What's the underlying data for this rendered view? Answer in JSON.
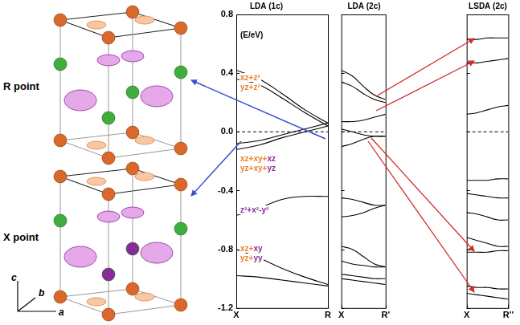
{
  "structure": {
    "labels": [
      "R point",
      "X point"
    ],
    "axes": [
      "c",
      "b",
      "a"
    ]
  },
  "chart_data": [
    {
      "type": "line",
      "title": "LDA (1c)",
      "y_label": "(E/eV)",
      "x": [
        0,
        0.25,
        0.5,
        0.75,
        1
      ],
      "xlim": [
        0,
        1
      ],
      "xticks": [
        {
          "value": 0,
          "label": "X"
        },
        {
          "value": 1,
          "label": "R"
        }
      ],
      "ylim": [
        -1.2,
        0.8
      ],
      "yticks": [
        0.8,
        0.4,
        {
          "value": 0,
          "label": "0.0"
        },
        -0.4,
        -0.8,
        -1.2
      ],
      "grid": false,
      "annotations": [
        [
          {
            "text": "xz+z²",
            "color": "#e8822a"
          }
        ],
        [
          {
            "text": "yz+z²",
            "color": "#e8822a"
          }
        ],
        [
          {
            "text": "xz+xy+",
            "color": "#e8822a"
          },
          {
            "text": "xz",
            "color": "#8a2a9a"
          }
        ],
        [
          {
            "text": "yz+xy+",
            "color": "#e8822a"
          },
          {
            "text": "yz",
            "color": "#8a2a9a"
          }
        ],
        [
          {
            "text": "z²+x²-y²",
            "color": "#8a2a9a"
          }
        ],
        [
          {
            "text": "xz+",
            "color": "#e8822a"
          },
          {
            "text": "xy",
            "color": "#8a2a9a"
          }
        ],
        [
          {
            "text": "yz+",
            "color": "#e8822a"
          },
          {
            "text": "yy",
            "color": "#8a2a9a"
          }
        ]
      ],
      "series": [
        {
          "color": "#000000",
          "values": [
            0.42,
            0.36,
            0.26,
            0.15,
            0.06
          ]
        },
        {
          "color": "#000000",
          "values": [
            0.36,
            0.32,
            0.23,
            0.13,
            0.04
          ]
        },
        {
          "color": "#000000",
          "values": [
            -0.08,
            -0.06,
            -0.02,
            0.02,
            0.06
          ]
        },
        {
          "color": "#000000",
          "values": [
            -0.12,
            -0.09,
            -0.04,
            0.0,
            0.04
          ]
        },
        {
          "color": "#000000",
          "values": [
            -0.57,
            -0.52,
            -0.46,
            -0.44,
            -0.44
          ]
        },
        {
          "color": "#000000",
          "values": [
            -0.8,
            -0.86,
            -0.93,
            -0.99,
            -1.04
          ]
        },
        {
          "color": "#000000",
          "values": [
            -0.98,
            -0.99,
            -1.01,
            -1.03,
            -1.05
          ]
        },
        {
          "color": "#000000",
          "line_style": "dashed",
          "values": [
            0,
            0,
            0,
            0,
            0
          ]
        }
      ]
    },
    {
      "type": "line",
      "title": "LDA (2c)",
      "x": [
        0,
        0.25,
        0.5,
        0.75,
        1
      ],
      "xlim": [
        0,
        1
      ],
      "xticks": [
        {
          "value": 0,
          "label": "X"
        },
        {
          "value": 1,
          "label": "R'"
        }
      ],
      "ylim": [
        -1.2,
        0.8
      ],
      "yticks": [
        0.8,
        0.4,
        0,
        -0.4,
        -0.8,
        -1.2
      ],
      "grid": false,
      "tick_labels": "x",
      "series": [
        {
          "color": "#000000",
          "values": [
            0.42,
            0.38,
            0.31,
            0.25,
            0.22
          ]
        },
        {
          "color": "#000000",
          "values": [
            0.34,
            0.31,
            0.26,
            0.22,
            0.2
          ]
        },
        {
          "color": "#000000",
          "values": [
            0.07,
            0.07,
            0.08,
            0.1,
            0.12
          ]
        },
        {
          "color": "#000000",
          "values": [
            0.02,
            0.0,
            -0.02,
            -0.03,
            -0.03
          ]
        },
        {
          "color": "#000000",
          "values": [
            -0.1,
            -0.08,
            -0.05,
            -0.03,
            -0.03
          ]
        },
        {
          "color": "#000000",
          "values": [
            -0.45,
            -0.46,
            -0.48,
            -0.5,
            -0.5
          ]
        },
        {
          "color": "#000000",
          "values": [
            -0.58,
            -0.57,
            -0.55,
            -0.52,
            -0.5
          ]
        },
        {
          "color": "#000000",
          "values": [
            -0.78,
            -0.8,
            -0.85,
            -0.9,
            -0.92
          ]
        },
        {
          "color": "#000000",
          "values": [
            -0.88,
            -0.9,
            -0.91,
            -0.92,
            -0.92
          ]
        },
        {
          "color": "#000000",
          "values": [
            -0.97,
            -0.98,
            -0.99,
            -1.0,
            -1.0
          ]
        },
        {
          "color": "#000000",
          "values": [
            -1.0,
            -1.01,
            -1.02,
            -1.03,
            -1.04
          ]
        },
        {
          "color": "#000000",
          "line_style": "dashed",
          "values": [
            0,
            0,
            0,
            0,
            0
          ]
        }
      ]
    },
    {
      "type": "line",
      "title": "LSDA (2c)",
      "x": [
        0,
        0.25,
        0.5,
        0.75,
        1
      ],
      "xlim": [
        0,
        1
      ],
      "xticks": [
        {
          "value": 0,
          "label": "X"
        },
        {
          "value": 1,
          "label": "R''"
        }
      ],
      "ylim": [
        -1.2,
        0.8
      ],
      "yticks": [
        0.8,
        0.4,
        0,
        -0.4,
        -0.8,
        -1.2
      ],
      "grid": false,
      "tick_labels": "x",
      "series": [
        {
          "color": "#000000",
          "values": [
            0.63,
            0.63,
            0.64,
            0.64,
            0.64
          ]
        },
        {
          "color": "#000000",
          "values": [
            0.47,
            0.47,
            0.48,
            0.49,
            0.5
          ]
        },
        {
          "color": "#000000",
          "values": [
            0.12,
            0.13,
            0.15,
            0.17,
            0.18
          ]
        },
        {
          "color": "#000000",
          "values": [
            -0.33,
            -0.33,
            -0.33,
            -0.32,
            -0.32
          ]
        },
        {
          "color": "#000000",
          "values": [
            -0.42,
            -0.43,
            -0.44,
            -0.45,
            -0.45
          ]
        },
        {
          "color": "#000000",
          "values": [
            -0.55,
            -0.56,
            -0.58,
            -0.6,
            -0.6
          ]
        },
        {
          "color": "#000000",
          "values": [
            -0.72,
            -0.74,
            -0.76,
            -0.78,
            -0.78
          ]
        },
        {
          "color": "#000000",
          "values": [
            -0.82,
            -0.82,
            -0.82,
            -0.81,
            -0.81
          ]
        },
        {
          "color": "#000000",
          "values": [
            -1.05,
            -1.06,
            -1.06,
            -1.07,
            -1.07
          ]
        },
        {
          "color": "#000000",
          "values": [
            -1.1,
            -1.11,
            -1.12,
            -1.13,
            -1.14
          ]
        },
        {
          "color": "#000000",
          "line_style": "dashed",
          "values": [
            0,
            0,
            0,
            0,
            0
          ]
        }
      ]
    }
  ]
}
